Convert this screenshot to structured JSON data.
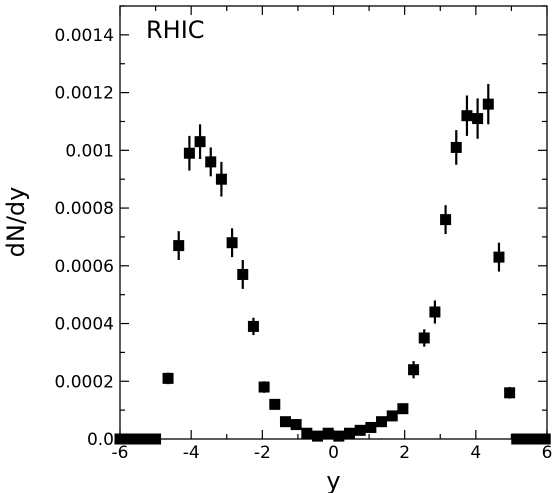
{
  "chart_data": {
    "type": "scatter",
    "annotation": "RHIC",
    "xlabel": "y",
    "ylabel": "dN/dy",
    "xlim": [
      -6,
      6
    ],
    "ylim": [
      0,
      0.0015
    ],
    "xticks": [
      -6,
      -4,
      -2,
      0,
      2,
      4,
      6
    ],
    "xtick_labels": [
      "-6",
      "-4",
      "-2",
      "0",
      "2",
      "4",
      "6"
    ],
    "yticks": [
      0,
      0.0002,
      0.0004,
      0.0006,
      0.0008,
      0.001,
      0.0012,
      0.0014
    ],
    "ytick_labels": [
      "0.0",
      "0.0002",
      "0.0004",
      "0.0006",
      "0.0008",
      "0.001",
      "0.0012",
      "0.0014"
    ],
    "grid": false,
    "marker": "filled-square",
    "series": [
      {
        "points": [
          {
            "x": -6.0,
            "y": 0.0,
            "err": 0
          },
          {
            "x": -5.8,
            "y": 0.0,
            "err": 0
          },
          {
            "x": -5.6,
            "y": 0.0,
            "err": 0
          },
          {
            "x": -5.4,
            "y": 0.0,
            "err": 0
          },
          {
            "x": -5.2,
            "y": 0.0,
            "err": 0
          },
          {
            "x": -5.0,
            "y": 0.0,
            "err": 0
          },
          {
            "x": -4.65,
            "y": 0.00021,
            "err": 2e-05
          },
          {
            "x": -4.35,
            "y": 0.00067,
            "err": 5e-05
          },
          {
            "x": -4.05,
            "y": 0.00099,
            "err": 6e-05
          },
          {
            "x": -3.75,
            "y": 0.00103,
            "err": 6e-05
          },
          {
            "x": -3.45,
            "y": 0.00096,
            "err": 5e-05
          },
          {
            "x": -3.15,
            "y": 0.0009,
            "err": 6e-05
          },
          {
            "x": -2.85,
            "y": 0.00068,
            "err": 5e-05
          },
          {
            "x": -2.55,
            "y": 0.00057,
            "err": 5e-05
          },
          {
            "x": -2.25,
            "y": 0.00039,
            "err": 3e-05
          },
          {
            "x": -1.95,
            "y": 0.00018,
            "err": 2e-05
          },
          {
            "x": -1.65,
            "y": 0.00012,
            "err": 1.5e-05
          },
          {
            "x": -1.35,
            "y": 6e-05,
            "err": 0
          },
          {
            "x": -1.05,
            "y": 5e-05,
            "err": 0
          },
          {
            "x": -0.75,
            "y": 2e-05,
            "err": 0
          },
          {
            "x": -0.45,
            "y": 1e-05,
            "err": 0
          },
          {
            "x": -0.15,
            "y": 2e-05,
            "err": 0
          },
          {
            "x": 0.15,
            "y": 1e-05,
            "err": 0
          },
          {
            "x": 0.45,
            "y": 2e-05,
            "err": 0
          },
          {
            "x": 0.75,
            "y": 3e-05,
            "err": 0
          },
          {
            "x": 1.05,
            "y": 4e-05,
            "err": 0
          },
          {
            "x": 1.35,
            "y": 6e-05,
            "err": 0
          },
          {
            "x": 1.65,
            "y": 8e-05,
            "err": 0
          },
          {
            "x": 1.95,
            "y": 0.000105,
            "err": 1e-05
          },
          {
            "x": 2.25,
            "y": 0.00024,
            "err": 3e-05
          },
          {
            "x": 2.55,
            "y": 0.00035,
            "err": 3e-05
          },
          {
            "x": 2.85,
            "y": 0.00044,
            "err": 4e-05
          },
          {
            "x": 3.15,
            "y": 0.00076,
            "err": 5e-05
          },
          {
            "x": 3.45,
            "y": 0.00101,
            "err": 6e-05
          },
          {
            "x": 3.75,
            "y": 0.00112,
            "err": 7e-05
          },
          {
            "x": 4.05,
            "y": 0.00111,
            "err": 7e-05
          },
          {
            "x": 4.35,
            "y": 0.00116,
            "err": 7e-05
          },
          {
            "x": 4.65,
            "y": 0.00063,
            "err": 5e-05
          },
          {
            "x": 4.95,
            "y": 0.00016,
            "err": 2e-05
          },
          {
            "x": 5.15,
            "y": 0.0,
            "err": 0
          },
          {
            "x": 5.35,
            "y": 0.0,
            "err": 0
          },
          {
            "x": 5.55,
            "y": 0.0,
            "err": 0
          },
          {
            "x": 5.75,
            "y": 0.0,
            "err": 0
          },
          {
            "x": 5.95,
            "y": 0.0,
            "err": 0
          }
        ]
      }
    ]
  }
}
